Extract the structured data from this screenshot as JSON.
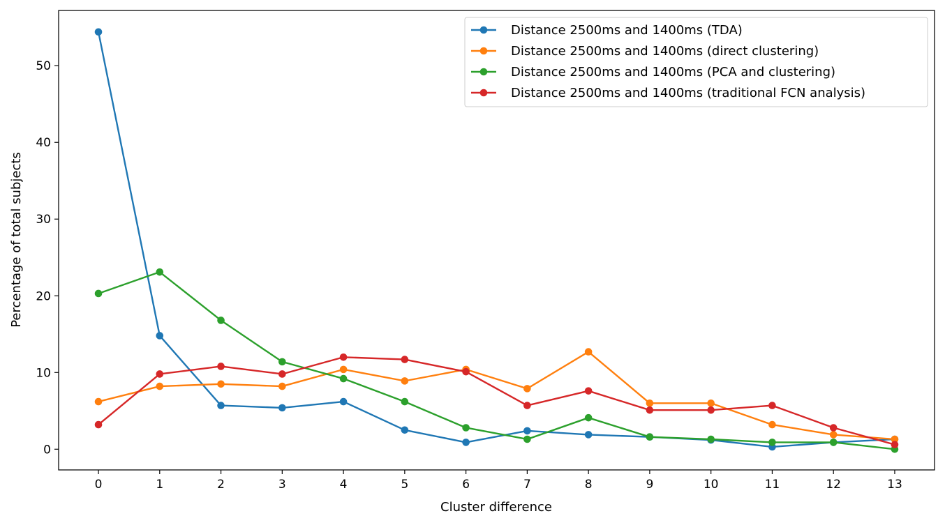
{
  "chart_data": {
    "type": "line",
    "title": "",
    "xlabel": "Cluster difference",
    "ylabel": "Percentage of total subjects",
    "x": [
      0,
      1,
      2,
      3,
      4,
      5,
      6,
      7,
      8,
      9,
      10,
      11,
      12,
      13
    ],
    "xticks": [
      "0",
      "1",
      "2",
      "3",
      "4",
      "5",
      "6",
      "7",
      "8",
      "9",
      "10",
      "11",
      "12",
      "13"
    ],
    "yticks": [
      "0",
      "10",
      "20",
      "30",
      "40",
      "50"
    ],
    "xlim": [
      -0.65,
      13.65
    ],
    "ylim": [
      -2.7,
      57.2
    ],
    "grid": false,
    "legend_position": "top-right",
    "series": [
      {
        "name": "Distance 2500ms and 1400ms (TDA)",
        "color": "#1f77b4",
        "values": [
          54.4,
          14.8,
          5.7,
          5.4,
          6.2,
          2.5,
          0.9,
          2.4,
          1.9,
          1.6,
          1.2,
          0.3,
          0.9,
          1.3
        ]
      },
      {
        "name": "Distance 2500ms and 1400ms (direct clustering)",
        "color": "#ff7f0e",
        "values": [
          6.2,
          8.2,
          8.5,
          8.2,
          10.4,
          8.9,
          10.4,
          7.9,
          12.7,
          6.0,
          6.0,
          3.2,
          1.9,
          1.3
        ]
      },
      {
        "name": "Distance 2500ms and 1400ms (PCA and clustering)",
        "color": "#2ca02c",
        "values": [
          20.3,
          23.1,
          16.8,
          11.4,
          9.2,
          6.2,
          2.8,
          1.3,
          4.1,
          1.6,
          1.3,
          0.9,
          0.9,
          0.0
        ]
      },
      {
        "name": "Distance 2500ms and 1400ms (traditional FCN analysis)",
        "color": "#d62728",
        "values": [
          3.2,
          9.8,
          10.8,
          9.8,
          12.0,
          11.7,
          10.1,
          5.7,
          7.6,
          5.1,
          5.1,
          5.7,
          2.8,
          0.6
        ]
      }
    ]
  }
}
